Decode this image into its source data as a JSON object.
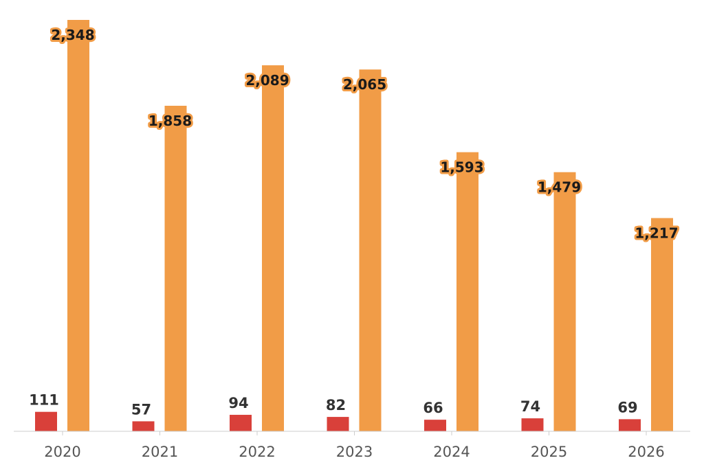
{
  "chart_data": {
    "type": "bar",
    "title": "",
    "xlabel": "",
    "ylabel": "",
    "categories": [
      "2020",
      "2021",
      "2022",
      "2023",
      "2024",
      "2025",
      "2026"
    ],
    "series": [
      {
        "color": "#d9403a",
        "values": [
          111,
          57,
          94,
          82,
          66,
          74,
          69
        ],
        "labels": [
          "111",
          "57",
          "94",
          "82",
          "66",
          "74",
          "69"
        ]
      },
      {
        "color": "#f19c47",
        "values": [
          2348,
          1858,
          2089,
          2065,
          1593,
          1479,
          1217
        ],
        "labels": [
          "2,348",
          "1,858",
          "2,089",
          "2,065",
          "1,593",
          "1,479",
          "1,217"
        ]
      }
    ],
    "ylim": [
      0,
      2348
    ],
    "grid": false,
    "legend": "none",
    "colors": {
      "axis": "#cccccc",
      "tick_text": "#555555"
    }
  }
}
